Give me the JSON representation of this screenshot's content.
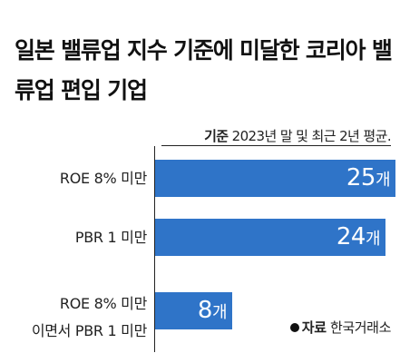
{
  "title": "일본 밸류업 지수 기준에 미달한 코리아 밸류업 편입 기업",
  "subtitle_key": "기준",
  "subtitle_text": "2023년 말 및 최근 2년 평균.",
  "source_key": "자료",
  "source_text": "한국거래소",
  "colors": {
    "bar": "#2f74c8",
    "text": "#111111"
  },
  "chart_data": {
    "type": "bar",
    "orientation": "horizontal",
    "categories": [
      "ROE 8% 미만",
      "PBR 1 미만",
      "ROE 8% 미만\n이면서 PBR 1 미만"
    ],
    "values": [
      25,
      24,
      8
    ],
    "value_labels": [
      "25",
      "24",
      "8"
    ],
    "unit": "개",
    "xlim": [
      0,
      25
    ]
  }
}
